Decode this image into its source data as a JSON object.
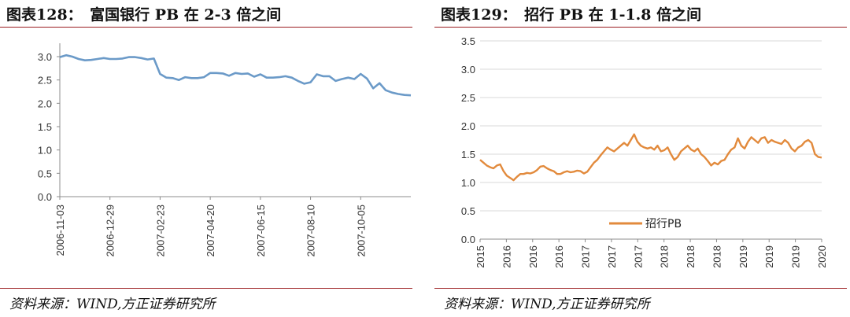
{
  "left_panel": {
    "title": "图表128：　富国银行 PB 在 2-3 倍之间",
    "source": "资料来源：WIND,方正证券研究所"
  },
  "right_panel": {
    "title": "图表129：　招行 PB 在 1-1.8 倍之间",
    "source": "资料来源：WIND,方正证券研究所"
  },
  "colors": {
    "rule": "#9b1d20",
    "left_series": "#6b9ac8",
    "right_series": "#e28a3c",
    "grid": "#d9d9d9"
  },
  "chart_data": [
    {
      "type": "line",
      "title": "富国银行 PB 在 2-3 倍之间",
      "xlabel": "",
      "ylabel": "",
      "ylim": [
        0,
        3.0
      ],
      "yticks": [
        "0.0",
        "0.5",
        "1.0",
        "1.5",
        "2.0",
        "2.5",
        "3.0"
      ],
      "grid": false,
      "legend": "none",
      "x_tick_labels": [
        "2006-11-03",
        "2006-12-29",
        "2007-02-23",
        "2007-04-20",
        "2007-06-15",
        "2007-08-10",
        "2007-10-05"
      ],
      "x_start": "2006-11-03",
      "x_end": "2007-11-30",
      "series": [
        {
          "x": [
            "2006-11-03",
            "2006-11-10",
            "2006-11-17",
            "2006-11-24",
            "2006-12-01",
            "2006-12-08",
            "2006-12-15",
            "2006-12-22",
            "2006-12-29",
            "2007-01-05",
            "2007-01-12",
            "2007-01-19",
            "2007-01-26",
            "2007-02-02",
            "2007-02-09",
            "2007-02-16",
            "2007-02-23",
            "2007-03-02",
            "2007-03-09",
            "2007-03-16",
            "2007-03-23",
            "2007-03-30",
            "2007-04-06",
            "2007-04-13",
            "2007-04-20",
            "2007-04-27",
            "2007-05-04",
            "2007-05-11",
            "2007-05-18",
            "2007-05-25",
            "2007-06-01",
            "2007-06-08",
            "2007-06-15",
            "2007-06-22",
            "2007-06-29",
            "2007-07-06",
            "2007-07-13",
            "2007-07-20",
            "2007-07-27",
            "2007-08-03",
            "2007-08-10",
            "2007-08-17",
            "2007-08-24",
            "2007-08-31",
            "2007-09-07",
            "2007-09-14",
            "2007-09-21",
            "2007-09-28",
            "2007-10-05",
            "2007-10-12",
            "2007-10-19",
            "2007-10-26",
            "2007-11-02",
            "2007-11-09",
            "2007-11-16",
            "2007-11-23",
            "2007-11-30"
          ],
          "values": [
            2.99,
            3.03,
            3.0,
            2.95,
            2.92,
            2.93,
            2.95,
            2.97,
            2.95,
            2.95,
            2.96,
            2.99,
            2.99,
            2.97,
            2.94,
            2.96,
            2.63,
            2.55,
            2.54,
            2.5,
            2.56,
            2.54,
            2.54,
            2.56,
            2.65,
            2.65,
            2.64,
            2.59,
            2.65,
            2.63,
            2.64,
            2.57,
            2.62,
            2.55,
            2.55,
            2.56,
            2.58,
            2.55,
            2.48,
            2.42,
            2.45,
            2.62,
            2.58,
            2.58,
            2.48,
            2.52,
            2.55,
            2.52,
            2.63,
            2.53,
            2.32,
            2.43,
            2.28,
            2.23,
            2.2,
            2.18,
            2.17
          ]
        }
      ]
    },
    {
      "type": "line",
      "title": "招行 PB 在 1-1.8 倍之间",
      "xlabel": "",
      "ylabel": "",
      "ylim": [
        0,
        3.5
      ],
      "yticks": [
        "0.0",
        "0.5",
        "1.0",
        "1.5",
        "2.0",
        "2.5",
        "3.0",
        "3.5"
      ],
      "grid": true,
      "legend": "bottom-center",
      "x_tick_labels": [
        "2015",
        "2016",
        "2016",
        "2016",
        "2017",
        "2017",
        "2017",
        "2018",
        "2018",
        "2018",
        "2019",
        "2019",
        "2019",
        "2020"
      ],
      "x_range": [
        2015.0,
        2020.1
      ],
      "series": [
        {
          "name": "招行PB",
          "x": [
            2015.0,
            2015.05,
            2015.1,
            2015.15,
            2015.2,
            2015.25,
            2015.3,
            2015.35,
            2015.4,
            2015.45,
            2015.5,
            2015.55,
            2015.6,
            2015.65,
            2015.7,
            2015.75,
            2015.8,
            2015.85,
            2015.9,
            2015.95,
            2016.0,
            2016.05,
            2016.1,
            2016.15,
            2016.2,
            2016.25,
            2016.3,
            2016.35,
            2016.4,
            2016.45,
            2016.5,
            2016.55,
            2016.6,
            2016.65,
            2016.7,
            2016.75,
            2016.8,
            2016.85,
            2016.9,
            2016.95,
            2017.0,
            2017.05,
            2017.1,
            2017.15,
            2017.2,
            2017.25,
            2017.3,
            2017.35,
            2017.4,
            2017.45,
            2017.5,
            2017.55,
            2017.6,
            2017.65,
            2017.7,
            2017.75,
            2017.8,
            2017.85,
            2017.9,
            2017.95,
            2018.0,
            2018.05,
            2018.1,
            2018.15,
            2018.2,
            2018.25,
            2018.3,
            2018.35,
            2018.4,
            2018.45,
            2018.5,
            2018.55,
            2018.6,
            2018.65,
            2018.7,
            2018.75,
            2018.8,
            2018.85,
            2018.9,
            2018.95,
            2019.0,
            2019.05,
            2019.1,
            2019.15,
            2019.2,
            2019.25,
            2019.3,
            2019.35,
            2019.4,
            2019.45,
            2019.5,
            2019.55,
            2019.6,
            2019.65,
            2019.7,
            2019.75,
            2019.8,
            2019.85,
            2019.9,
            2019.95,
            2020.0,
            2020.05,
            2020.1
          ],
          "values": [
            1.4,
            1.35,
            1.3,
            1.27,
            1.25,
            1.3,
            1.32,
            1.2,
            1.12,
            1.08,
            1.04,
            1.1,
            1.15,
            1.15,
            1.17,
            1.16,
            1.18,
            1.22,
            1.28,
            1.29,
            1.25,
            1.22,
            1.2,
            1.15,
            1.15,
            1.18,
            1.2,
            1.18,
            1.19,
            1.21,
            1.2,
            1.16,
            1.19,
            1.27,
            1.35,
            1.4,
            1.48,
            1.55,
            1.62,
            1.58,
            1.55,
            1.6,
            1.65,
            1.7,
            1.65,
            1.75,
            1.85,
            1.72,
            1.65,
            1.62,
            1.6,
            1.62,
            1.58,
            1.65,
            1.55,
            1.57,
            1.62,
            1.5,
            1.4,
            1.45,
            1.55,
            1.6,
            1.65,
            1.58,
            1.55,
            1.6,
            1.5,
            1.45,
            1.38,
            1.3,
            1.35,
            1.32,
            1.38,
            1.4,
            1.5,
            1.58,
            1.62,
            1.78,
            1.65,
            1.6,
            1.72,
            1.8,
            1.75,
            1.7,
            1.78,
            1.8,
            1.7,
            1.75,
            1.72,
            1.7,
            1.68,
            1.75,
            1.7,
            1.6,
            1.55,
            1.62,
            1.65,
            1.72,
            1.75,
            1.7,
            1.5,
            1.45,
            1.44
          ]
        }
      ]
    }
  ]
}
